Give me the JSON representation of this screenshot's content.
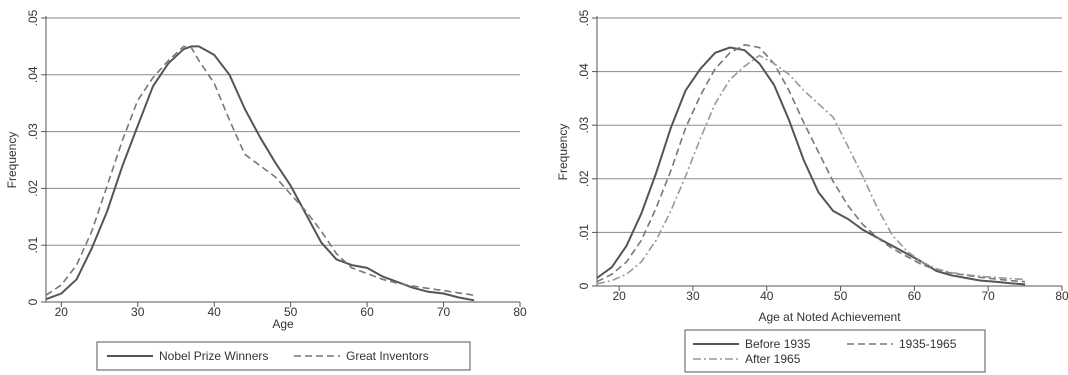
{
  "chart_data": [
    {
      "type": "line",
      "xlabel": "Age",
      "ylabel": "Frequency",
      "xlim": [
        18,
        80
      ],
      "ylim": [
        0,
        0.05
      ],
      "xticks": [
        20,
        30,
        40,
        50,
        60,
        70,
        80
      ],
      "yticks": [
        0,
        0.01,
        0.02,
        0.03,
        0.04,
        0.05
      ],
      "ytick_labels": [
        "0",
        ".01",
        ".02",
        ".03",
        ".04",
        ".05"
      ],
      "grid": true,
      "legend_position": "bottom",
      "series": [
        {
          "name": "Nobel Prize Winners",
          "style": "solid",
          "points": [
            [
              18,
              0.0005
            ],
            [
              20,
              0.0015
            ],
            [
              22,
              0.004
            ],
            [
              24,
              0.0095
            ],
            [
              26,
              0.016
            ],
            [
              28,
              0.024
            ],
            [
              30,
              0.031
            ],
            [
              32,
              0.038
            ],
            [
              34,
              0.042
            ],
            [
              36,
              0.0445
            ],
            [
              37,
              0.045
            ],
            [
              38,
              0.045
            ],
            [
              40,
              0.0435
            ],
            [
              42,
              0.04
            ],
            [
              44,
              0.034
            ],
            [
              46,
              0.029
            ],
            [
              48,
              0.0245
            ],
            [
              50,
              0.0205
            ],
            [
              52,
              0.0155
            ],
            [
              54,
              0.0105
            ],
            [
              56,
              0.0075
            ],
            [
              58,
              0.0065
            ],
            [
              60,
              0.006
            ],
            [
              62,
              0.0045
            ],
            [
              64,
              0.0035
            ],
            [
              66,
              0.0025
            ],
            [
              68,
              0.0018
            ],
            [
              70,
              0.0015
            ],
            [
              72,
              0.0008
            ],
            [
              74,
              0.0003
            ]
          ]
        },
        {
          "name": "Great Inventors",
          "style": "dashed",
          "points": [
            [
              18,
              0.0012
            ],
            [
              20,
              0.003
            ],
            [
              22,
              0.0065
            ],
            [
              24,
              0.0125
            ],
            [
              26,
              0.0205
            ],
            [
              28,
              0.0285
            ],
            [
              30,
              0.0355
            ],
            [
              32,
              0.0395
            ],
            [
              34,
              0.0425
            ],
            [
              36,
              0.045
            ],
            [
              37,
              0.0448
            ],
            [
              38,
              0.0425
            ],
            [
              40,
              0.0385
            ],
            [
              42,
              0.032
            ],
            [
              44,
              0.026
            ],
            [
              46,
              0.024
            ],
            [
              48,
              0.022
            ],
            [
              50,
              0.019
            ],
            [
              52,
              0.016
            ],
            [
              54,
              0.0125
            ],
            [
              56,
              0.0085
            ],
            [
              58,
              0.006
            ],
            [
              60,
              0.005
            ],
            [
              62,
              0.004
            ],
            [
              64,
              0.0033
            ],
            [
              66,
              0.0028
            ],
            [
              68,
              0.0024
            ],
            [
              70,
              0.002
            ],
            [
              72,
              0.0016
            ],
            [
              74,
              0.0012
            ]
          ]
        }
      ]
    },
    {
      "type": "line",
      "xlabel": "Age at Noted Achievement",
      "ylabel": "Frequency",
      "xlim": [
        17,
        80
      ],
      "ylim": [
        0,
        0.05
      ],
      "xticks": [
        20,
        30,
        40,
        50,
        60,
        70,
        80
      ],
      "yticks": [
        0,
        0.01,
        0.02,
        0.03,
        0.04,
        0.05
      ],
      "ytick_labels": [
        "0",
        ".01",
        ".02",
        ".03",
        ".04",
        ".05"
      ],
      "grid": true,
      "legend_position": "bottom",
      "series": [
        {
          "name": "Before 1935",
          "style": "solid",
          "points": [
            [
              17,
              0.0015
            ],
            [
              19,
              0.0035
            ],
            [
              21,
              0.0075
            ],
            [
              23,
              0.0135
            ],
            [
              25,
              0.021
            ],
            [
              27,
              0.0295
            ],
            [
              29,
              0.0365
            ],
            [
              31,
              0.0405
            ],
            [
              33,
              0.0435
            ],
            [
              35,
              0.0445
            ],
            [
              37,
              0.044
            ],
            [
              39,
              0.0415
            ],
            [
              41,
              0.0375
            ],
            [
              43,
              0.031
            ],
            [
              45,
              0.0235
            ],
            [
              47,
              0.0175
            ],
            [
              49,
              0.014
            ],
            [
              51,
              0.0125
            ],
            [
              53,
              0.0105
            ],
            [
              55,
              0.009
            ],
            [
              57,
              0.0075
            ],
            [
              59,
              0.006
            ],
            [
              61,
              0.0045
            ],
            [
              63,
              0.0028
            ],
            [
              65,
              0.002
            ],
            [
              67,
              0.0015
            ],
            [
              69,
              0.001
            ],
            [
              71,
              0.0008
            ],
            [
              73,
              0.0005
            ],
            [
              75,
              0.0003
            ]
          ]
        },
        {
          "name": "1935-1965",
          "style": "dashed",
          "points": [
            [
              17,
              0.0008
            ],
            [
              19,
              0.0022
            ],
            [
              21,
              0.0045
            ],
            [
              23,
              0.0085
            ],
            [
              25,
              0.0145
            ],
            [
              27,
              0.0215
            ],
            [
              29,
              0.0295
            ],
            [
              31,
              0.0355
            ],
            [
              33,
              0.0405
            ],
            [
              35,
              0.0435
            ],
            [
              37,
              0.045
            ],
            [
              39,
              0.0445
            ],
            [
              41,
              0.0415
            ],
            [
              43,
              0.0365
            ],
            [
              45,
              0.0305
            ],
            [
              47,
              0.025
            ],
            [
              49,
              0.0195
            ],
            [
              51,
              0.015
            ],
            [
              53,
              0.0115
            ],
            [
              55,
              0.009
            ],
            [
              57,
              0.007
            ],
            [
              59,
              0.0055
            ],
            [
              61,
              0.004
            ],
            [
              63,
              0.003
            ],
            [
              65,
              0.0024
            ],
            [
              67,
              0.002
            ],
            [
              69,
              0.0016
            ],
            [
              71,
              0.0013
            ],
            [
              73,
              0.001
            ],
            [
              75,
              0.0008
            ]
          ]
        },
        {
          "name": "After 1965",
          "style": "dashdot",
          "points": [
            [
              17,
              0.0004
            ],
            [
              19,
              0.001
            ],
            [
              21,
              0.0022
            ],
            [
              23,
              0.0045
            ],
            [
              25,
              0.0085
            ],
            [
              27,
              0.014
            ],
            [
              29,
              0.0205
            ],
            [
              31,
              0.0275
            ],
            [
              33,
              0.034
            ],
            [
              35,
              0.0385
            ],
            [
              37,
              0.041
            ],
            [
              39,
              0.043
            ],
            [
              41,
              0.0415
            ],
            [
              43,
              0.0395
            ],
            [
              45,
              0.0365
            ],
            [
              47,
              0.034
            ],
            [
              49,
              0.0315
            ],
            [
              51,
              0.026
            ],
            [
              53,
              0.0205
            ],
            [
              55,
              0.0145
            ],
            [
              57,
              0.0095
            ],
            [
              59,
              0.0065
            ],
            [
              61,
              0.0045
            ],
            [
              63,
              0.0032
            ],
            [
              65,
              0.0025
            ],
            [
              67,
              0.0021
            ],
            [
              69,
              0.0018
            ],
            [
              71,
              0.0016
            ],
            [
              73,
              0.0014
            ],
            [
              75,
              0.0012
            ]
          ]
        }
      ]
    }
  ]
}
